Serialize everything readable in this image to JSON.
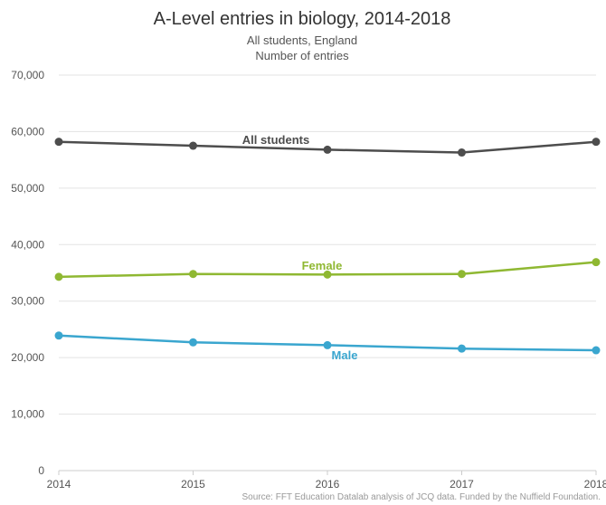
{
  "chart_data": {
    "type": "line",
    "title": "A-Level entries in biology, 2014-2018",
    "subtitle_lines": [
      "All students, England",
      "Number of entries"
    ],
    "x": [
      2014,
      2015,
      2016,
      2017,
      2018
    ],
    "x_tick_labels": [
      "2014",
      "2015",
      "2016",
      "2017",
      "2018"
    ],
    "ylim": [
      0,
      70000
    ],
    "y_ticks": [
      0,
      10000,
      20000,
      30000,
      40000,
      50000,
      60000,
      70000
    ],
    "y_tick_labels": [
      "0",
      "10,000",
      "20,000",
      "30,000",
      "40,000",
      "50,000",
      "60,000",
      "70,000"
    ],
    "grid": true,
    "series": [
      {
        "name": "All students",
        "color": "#4d4d4d",
        "values": [
          58200,
          57500,
          56800,
          56300,
          58200
        ]
      },
      {
        "name": "Female",
        "color": "#8fb832",
        "values": [
          34300,
          34800,
          34700,
          34800,
          36900
        ]
      },
      {
        "name": "Male",
        "color": "#3aa6cf",
        "values": [
          23900,
          22700,
          22200,
          21600,
          21300
        ]
      }
    ],
    "source": "Source: FFT Education Datalab analysis of JCQ data. Funded by the Nuffield Foundation."
  }
}
